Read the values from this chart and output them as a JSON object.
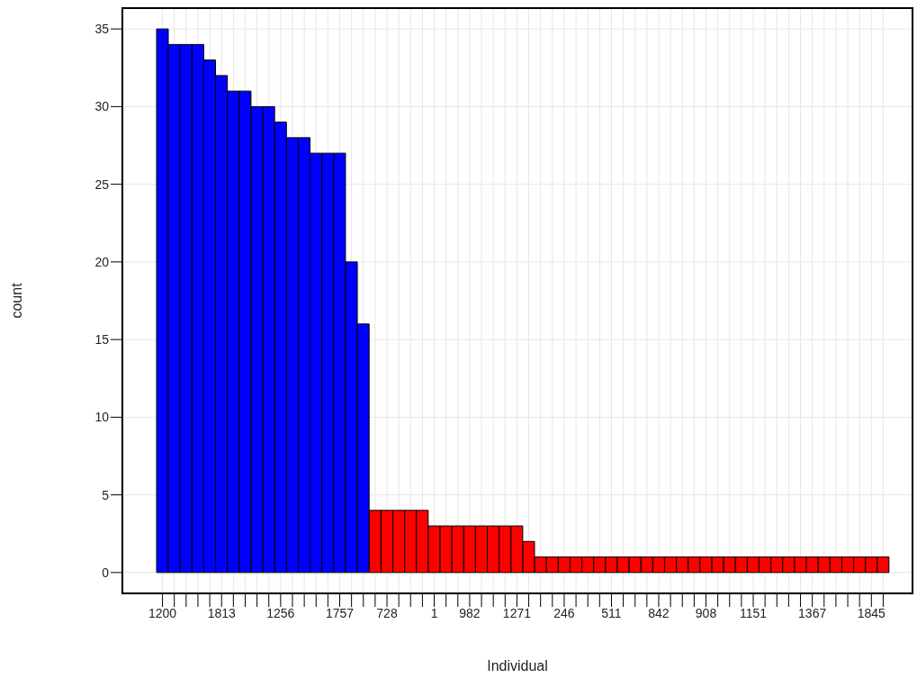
{
  "chart_data": {
    "type": "bar",
    "xlabel": "Individual",
    "ylabel": "count",
    "categories": [
      "1200",
      null,
      null,
      null,
      null,
      "1813",
      null,
      null,
      null,
      null,
      "1256",
      null,
      null,
      null,
      null,
      "1757",
      null,
      null,
      null,
      "728",
      null,
      null,
      null,
      "1",
      null,
      null,
      "982",
      null,
      null,
      null,
      "1271",
      null,
      null,
      null,
      "246",
      null,
      null,
      null,
      "511",
      null,
      null,
      null,
      "842",
      null,
      null,
      null,
      "908",
      null,
      null,
      null,
      "1151",
      null,
      null,
      null,
      null,
      "1367",
      null,
      null,
      null,
      null,
      "1845",
      null
    ],
    "values": [
      35,
      34,
      34,
      34,
      33,
      32,
      31,
      31,
      30,
      30,
      29,
      28,
      28,
      27,
      27,
      27,
      20,
      16,
      4,
      4,
      4,
      4,
      4,
      3,
      3,
      3,
      3,
      3,
      3,
      3,
      3,
      2,
      1,
      1,
      1,
      1,
      1,
      1,
      1,
      1,
      1,
      1,
      1,
      1,
      1,
      1,
      1,
      1,
      1,
      1,
      1,
      1,
      1,
      1,
      1,
      1,
      1,
      1,
      1,
      1,
      1,
      1
    ],
    "colors": [
      "#0000ff",
      "#0000ff",
      "#0000ff",
      "#0000ff",
      "#0000ff",
      "#0000ff",
      "#0000ff",
      "#0000ff",
      "#0000ff",
      "#0000ff",
      "#0000ff",
      "#0000ff",
      "#0000ff",
      "#0000ff",
      "#0000ff",
      "#0000ff",
      "#0000ff",
      "#0000ff",
      "#ff0000",
      "#ff0000",
      "#ff0000",
      "#ff0000",
      "#ff0000",
      "#ff0000",
      "#ff0000",
      "#ff0000",
      "#ff0000",
      "#ff0000",
      "#ff0000",
      "#ff0000",
      "#ff0000",
      "#ff0000",
      "#ff0000",
      "#ff0000",
      "#ff0000",
      "#ff0000",
      "#ff0000",
      "#ff0000",
      "#ff0000",
      "#ff0000",
      "#ff0000",
      "#ff0000",
      "#ff0000",
      "#ff0000",
      "#ff0000",
      "#ff0000",
      "#ff0000",
      "#ff0000",
      "#ff0000",
      "#ff0000",
      "#ff0000",
      "#ff0000",
      "#ff0000",
      "#ff0000",
      "#ff0000",
      "#ff0000",
      "#ff0000",
      "#ff0000",
      "#ff0000",
      "#ff0000",
      "#ff0000",
      "#ff0000"
    ],
    "ylim": [
      -1.4,
      36.4
    ],
    "yticks": [
      0,
      5,
      10,
      15,
      20,
      25,
      30,
      35
    ],
    "grid": true
  }
}
